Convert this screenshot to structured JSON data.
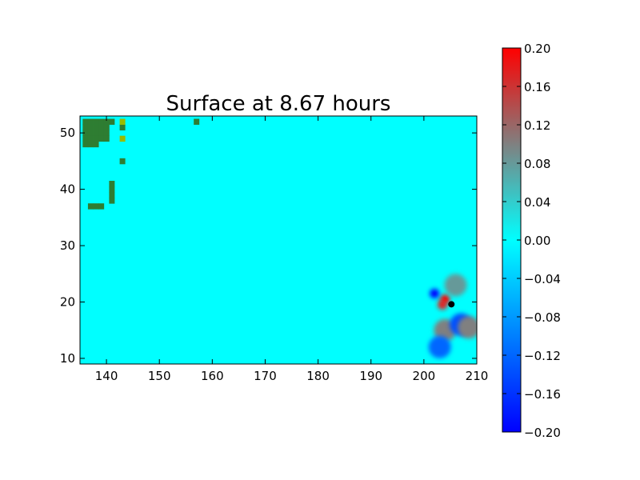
{
  "chart_data": {
    "type": "heatmap",
    "title": "Surface at 8.67 hours",
    "xlabel": "",
    "ylabel": "",
    "xlim": [
      135,
      210
    ],
    "ylim": [
      9,
      53
    ],
    "x_ticks": [
      "140",
      "150",
      "160",
      "170",
      "180",
      "190",
      "200",
      "210"
    ],
    "y_ticks": [
      "10",
      "20",
      "30",
      "40",
      "50"
    ],
    "colorbar": {
      "range": [
        -0.2,
        0.2
      ],
      "ticks": [
        "0.20",
        "0.16",
        "0.12",
        "0.08",
        "0.04",
        "0.00",
        "−0.04",
        "−0.08",
        "−0.12",
        "−0.16",
        "−0.20"
      ],
      "colors": {
        "min": "#0000ff",
        "mid": "#00ffff",
        "upper_mid": "#808080",
        "max": "#ff0000"
      }
    },
    "background_value": 0.0,
    "land_color": "#2e7d32",
    "land_highlight_color": "#99bb00",
    "land_cells": [
      {
        "lon": 136,
        "lat": 52
      },
      {
        "lon": 137,
        "lat": 52
      },
      {
        "lon": 138,
        "lat": 52
      },
      {
        "lon": 139,
        "lat": 52
      },
      {
        "lon": 140,
        "lat": 52
      },
      {
        "lon": 141,
        "lat": 52
      },
      {
        "lon": 136,
        "lat": 51
      },
      {
        "lon": 137,
        "lat": 51
      },
      {
        "lon": 138,
        "lat": 51
      },
      {
        "lon": 139,
        "lat": 51
      },
      {
        "lon": 140,
        "lat": 51
      },
      {
        "lon": 136,
        "lat": 50
      },
      {
        "lon": 137,
        "lat": 50
      },
      {
        "lon": 138,
        "lat": 50
      },
      {
        "lon": 139,
        "lat": 50
      },
      {
        "lon": 140,
        "lat": 50
      },
      {
        "lon": 136,
        "lat": 49
      },
      {
        "lon": 137,
        "lat": 49
      },
      {
        "lon": 138,
        "lat": 49
      },
      {
        "lon": 139,
        "lat": 49
      },
      {
        "lon": 140,
        "lat": 49
      },
      {
        "lon": 136,
        "lat": 48
      },
      {
        "lon": 137,
        "lat": 48
      },
      {
        "lon": 138,
        "lat": 48
      },
      {
        "lon": 143,
        "lat": 51
      },
      {
        "lon": 143,
        "lat": 45
      },
      {
        "lon": 141,
        "lat": 41
      },
      {
        "lon": 141,
        "lat": 40
      },
      {
        "lon": 141,
        "lat": 39
      },
      {
        "lon": 141,
        "lat": 38
      },
      {
        "lon": 137,
        "lat": 37
      },
      {
        "lon": 138,
        "lat": 37
      },
      {
        "lon": 139,
        "lat": 37
      },
      {
        "lon": 157,
        "lat": 52
      }
    ],
    "land_highlight_cells": [
      {
        "lon": 143,
        "lat": 52
      },
      {
        "lon": 143,
        "lat": 49
      }
    ],
    "wave_features": [
      {
        "lon": 204,
        "lat": 20.5,
        "value": 0.2
      },
      {
        "lon": 203.5,
        "lat": 19.5,
        "value": 0.18
      },
      {
        "lon": 202,
        "lat": 21.5,
        "value": -0.2
      },
      {
        "lon": 204,
        "lat": 15,
        "value": 0.1
      },
      {
        "lon": 207,
        "lat": 16,
        "value": -0.14
      },
      {
        "lon": 203,
        "lat": 12,
        "value": -0.12
      },
      {
        "lon": 208.5,
        "lat": 15.5,
        "value": 0.1
      },
      {
        "lon": 206,
        "lat": 23,
        "value": 0.08
      }
    ],
    "marker": {
      "lon": 205.2,
      "lat": 19.6,
      "color": "#000000"
    }
  }
}
